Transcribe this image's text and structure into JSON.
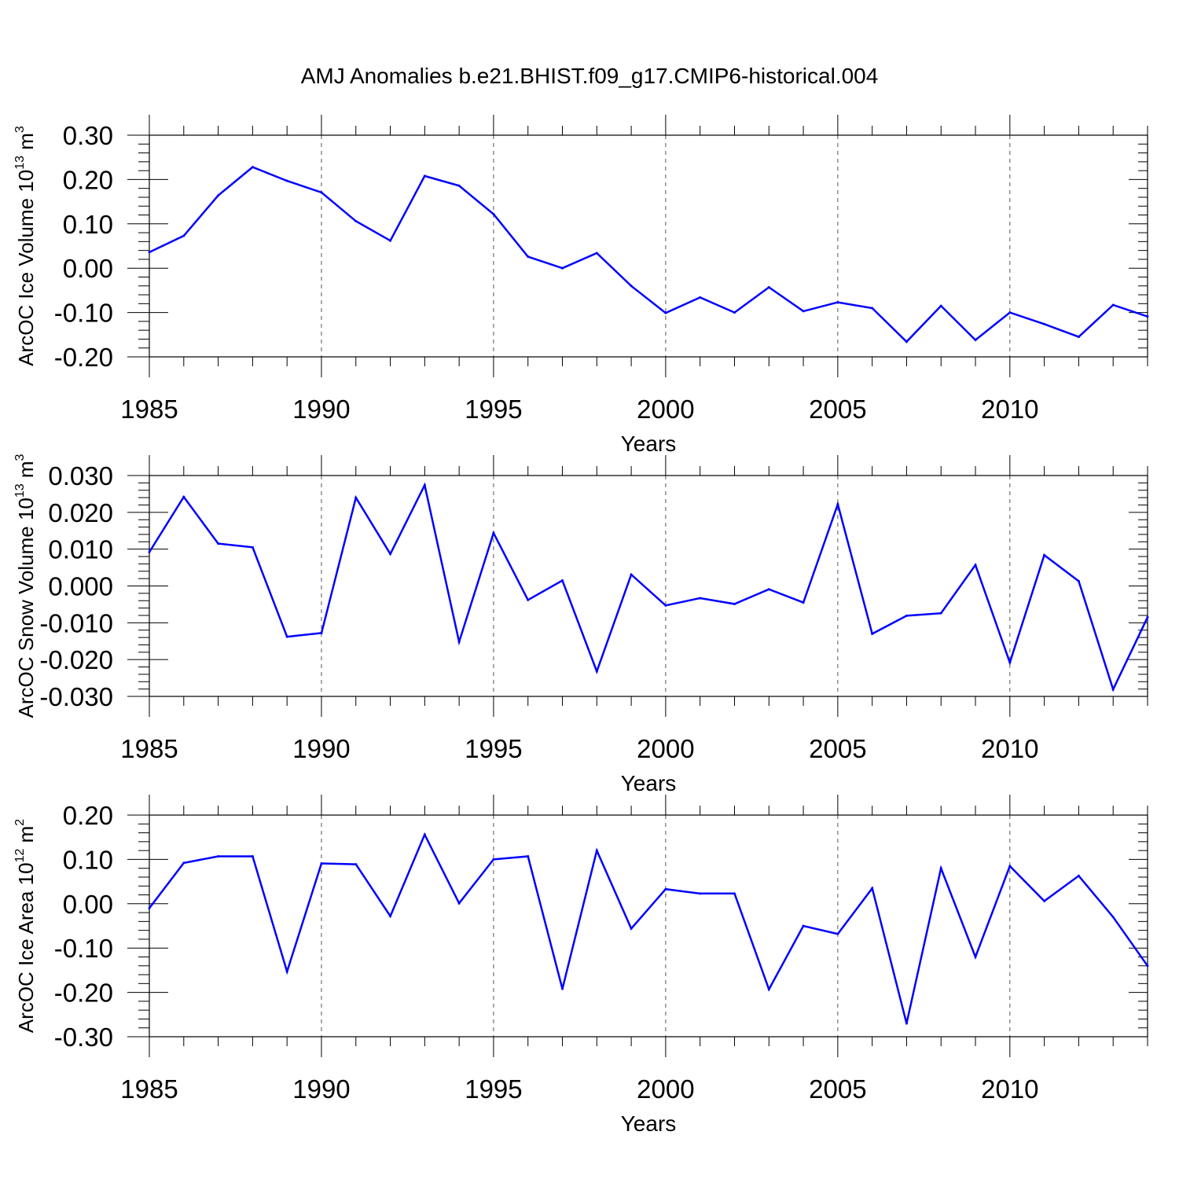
{
  "title": "AMJ Anomalies b.e21.BHIST.f09_g17.CMIP6-historical.004",
  "colors": {
    "line": "#0000ff",
    "axis": "#000000",
    "grid": "#555555"
  },
  "chart_data": [
    {
      "type": "line",
      "ylabel": {
        "main": "ArcOC Ice Volume 10",
        "exp": "13",
        "unit": " m",
        "unit_exp": "3"
      },
      "xlabel": "Years",
      "xlim": [
        1985,
        2014
      ],
      "ylim": [
        -0.2,
        0.3
      ],
      "xticks": [
        1985,
        1990,
        1995,
        2000,
        2005,
        2010
      ],
      "yticks": [
        -0.2,
        -0.1,
        0.0,
        0.1,
        0.2,
        0.3
      ],
      "ytick_labels": [
        "-0.20",
        "-0.10",
        "0.00",
        "0.10",
        "0.20",
        "0.30"
      ],
      "grid": "vertical-dashed",
      "x": [
        1985,
        1986,
        1987,
        1988,
        1989,
        1990,
        1991,
        1992,
        1993,
        1994,
        1995,
        1996,
        1997,
        1998,
        1999,
        2000,
        2001,
        2002,
        2003,
        2004,
        2005,
        2006,
        2007,
        2008,
        2009,
        2010,
        2011,
        2012,
        2013,
        2014
      ],
      "values": [
        0.036,
        0.073,
        0.164,
        0.228,
        0.197,
        0.171,
        0.106,
        0.062,
        0.208,
        0.186,
        0.122,
        0.026,
        0.0,
        0.034,
        -0.04,
        -0.101,
        -0.066,
        -0.1,
        -0.043,
        -0.097,
        -0.077,
        -0.09,
        -0.166,
        -0.085,
        -0.162,
        -0.1,
        -0.126,
        -0.155,
        -0.083,
        -0.109
      ]
    },
    {
      "type": "line",
      "ylabel": {
        "main": "ArcOC Snow Volume 10",
        "exp": "13",
        "unit": " m",
        "unit_exp": "3"
      },
      "xlabel": "Years",
      "xlim": [
        1985,
        2014
      ],
      "ylim": [
        -0.03,
        0.03
      ],
      "xticks": [
        1985,
        1990,
        1995,
        2000,
        2005,
        2010
      ],
      "yticks": [
        -0.03,
        -0.02,
        -0.01,
        0.0,
        0.01,
        0.02,
        0.03
      ],
      "ytick_labels": [
        "-0.030",
        "-0.020",
        "-0.010",
        "0.000",
        "0.010",
        "0.020",
        "0.030"
      ],
      "grid": "vertical-dashed",
      "x": [
        1985,
        1986,
        1987,
        1988,
        1989,
        1990,
        1991,
        1992,
        1993,
        1994,
        1995,
        1996,
        1997,
        1998,
        1999,
        2000,
        2001,
        2002,
        2003,
        2004,
        2005,
        2006,
        2007,
        2008,
        2009,
        2010,
        2011,
        2012,
        2013,
        2014
      ],
      "values": [
        0.0092,
        0.0242,
        0.0115,
        0.0105,
        -0.0138,
        -0.0128,
        0.024,
        0.0087,
        0.0274,
        -0.0152,
        0.0144,
        -0.0038,
        0.0015,
        -0.0232,
        0.0031,
        -0.0053,
        -0.0033,
        -0.0049,
        -0.0009,
        -0.0045,
        0.0222,
        -0.013,
        -0.0081,
        -0.0074,
        0.0057,
        -0.0208,
        0.0084,
        0.0013,
        -0.0281,
        -0.0085
      ]
    },
    {
      "type": "line",
      "ylabel": {
        "main": "ArcOC Ice Area 10",
        "exp": "12",
        "unit": " m",
        "unit_exp": "2"
      },
      "xlabel": "Years",
      "xlim": [
        1985,
        2014
      ],
      "ylim": [
        -0.3,
        0.2
      ],
      "xticks": [
        1985,
        1990,
        1995,
        2000,
        2005,
        2010
      ],
      "yticks": [
        -0.3,
        -0.2,
        -0.1,
        0.0,
        0.1,
        0.2
      ],
      "ytick_labels": [
        "-0.30",
        "-0.20",
        "-0.10",
        "0.00",
        "0.10",
        "0.20"
      ],
      "grid": "vertical-dashed",
      "x": [
        1985,
        1986,
        1987,
        1988,
        1989,
        1990,
        1991,
        1992,
        1993,
        1994,
        1995,
        1996,
        1997,
        1998,
        1999,
        2000,
        2001,
        2002,
        2003,
        2004,
        2005,
        2006,
        2007,
        2008,
        2009,
        2010,
        2011,
        2012,
        2013,
        2014
      ],
      "values": [
        -0.01,
        0.092,
        0.107,
        0.107,
        -0.153,
        0.091,
        0.089,
        -0.028,
        0.156,
        0.001,
        0.1,
        0.107,
        -0.192,
        0.12,
        -0.056,
        0.033,
        0.023,
        0.023,
        -0.193,
        -0.05,
        -0.068,
        0.035,
        -0.27,
        0.08,
        -0.12,
        0.085,
        0.006,
        0.063,
        -0.03,
        -0.14
      ]
    }
  ]
}
